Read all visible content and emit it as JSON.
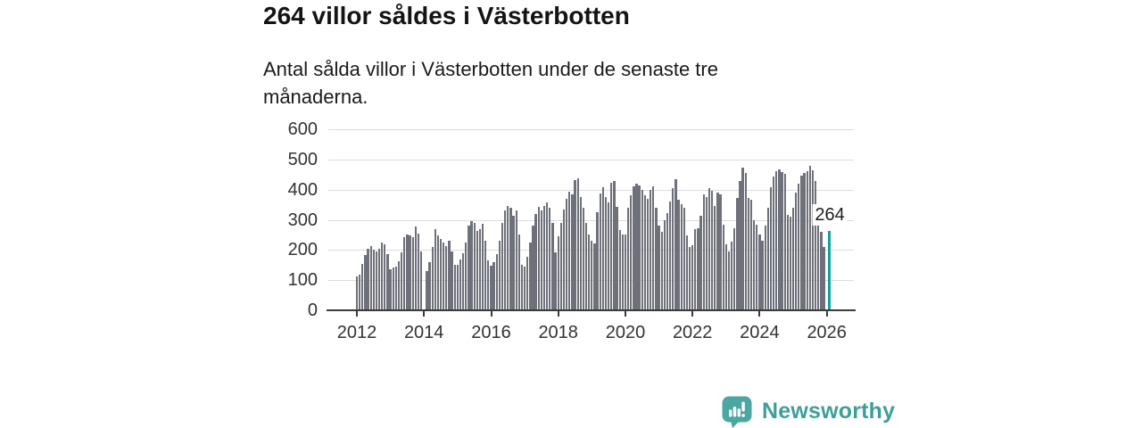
{
  "header": {
    "title": "264 villor såldes i Västerbotten",
    "subtitle": "Antal sålda villor i Västerbotten under de senaste tre månaderna."
  },
  "chart_data": {
    "type": "bar",
    "title": "264 villor såldes i Västerbotten",
    "subtitle": "Antal sålda villor i Västerbotten under de senaste tre månaderna.",
    "x_unit": "month",
    "x_start": "2012-01",
    "x_end": "2026-02",
    "ylim": [
      0,
      600
    ],
    "grid": true,
    "ytick_labels": [
      "0",
      "100",
      "200",
      "300",
      "400",
      "500",
      "600"
    ],
    "ytick_values": [
      0,
      100,
      200,
      300,
      400,
      500,
      600
    ],
    "xtick_labels": [
      "2012",
      "2014",
      "2016",
      "2018",
      "2020",
      "2022",
      "2024",
      "2026"
    ],
    "xtick_month_indices": [
      0,
      24,
      48,
      72,
      96,
      120,
      144,
      168
    ],
    "values": [
      113,
      117,
      155,
      183,
      205,
      212,
      201,
      196,
      205,
      226,
      220,
      186,
      137,
      141,
      146,
      163,
      192,
      241,
      252,
      249,
      242,
      278,
      254,
      196,
      null,
      131,
      161,
      210,
      269,
      248,
      236,
      226,
      212,
      232,
      196,
      152,
      150,
      168,
      190,
      225,
      280,
      296,
      290,
      262,
      270,
      286,
      230,
      165,
      147,
      160,
      185,
      230,
      290,
      330,
      345,
      340,
      312,
      332,
      250,
      152,
      145,
      178,
      225,
      280,
      320,
      342,
      330,
      345,
      359,
      339,
      290,
      191,
      245,
      290,
      334,
      369,
      393,
      384,
      433,
      438,
      374,
      340,
      290,
      250,
      230,
      221,
      324,
      388,
      408,
      374,
      359,
      423,
      428,
      344,
      265,
      250,
      250,
      340,
      380,
      410,
      420,
      415,
      398,
      380,
      370,
      400,
      412,
      340,
      280,
      260,
      300,
      322,
      361,
      405,
      434,
      366,
      351,
      341,
      249,
      210,
      215,
      268,
      273,
      312,
      385,
      375,
      405,
      395,
      346,
      390,
      385,
      283,
      219,
      195,
      229,
      273,
      371,
      430,
      472,
      455,
      371,
      366,
      300,
      285,
      250,
      230,
      280,
      340,
      408,
      443,
      462,
      467,
      458,
      453,
      315,
      310,
      340,
      390,
      420,
      445,
      455,
      460,
      480,
      465,
      430,
      318,
      259,
      210,
      null,
      264
    ],
    "highlight": {
      "index": 169,
      "value": 264,
      "label": "264"
    },
    "legend": null
  },
  "annotation": {
    "latest_value_label": "264"
  },
  "branding": {
    "name": "Newsworthy"
  },
  "colors": {
    "bar": "#6E707A",
    "highlight": "#0FA3A0",
    "brand_icon": "#4CA6A2",
    "brand_text": "#3E9E9A",
    "grid": "#dcdce0",
    "axis_line": "#3b3b3b",
    "axis_text": "#333333",
    "title_text": "#141414"
  }
}
